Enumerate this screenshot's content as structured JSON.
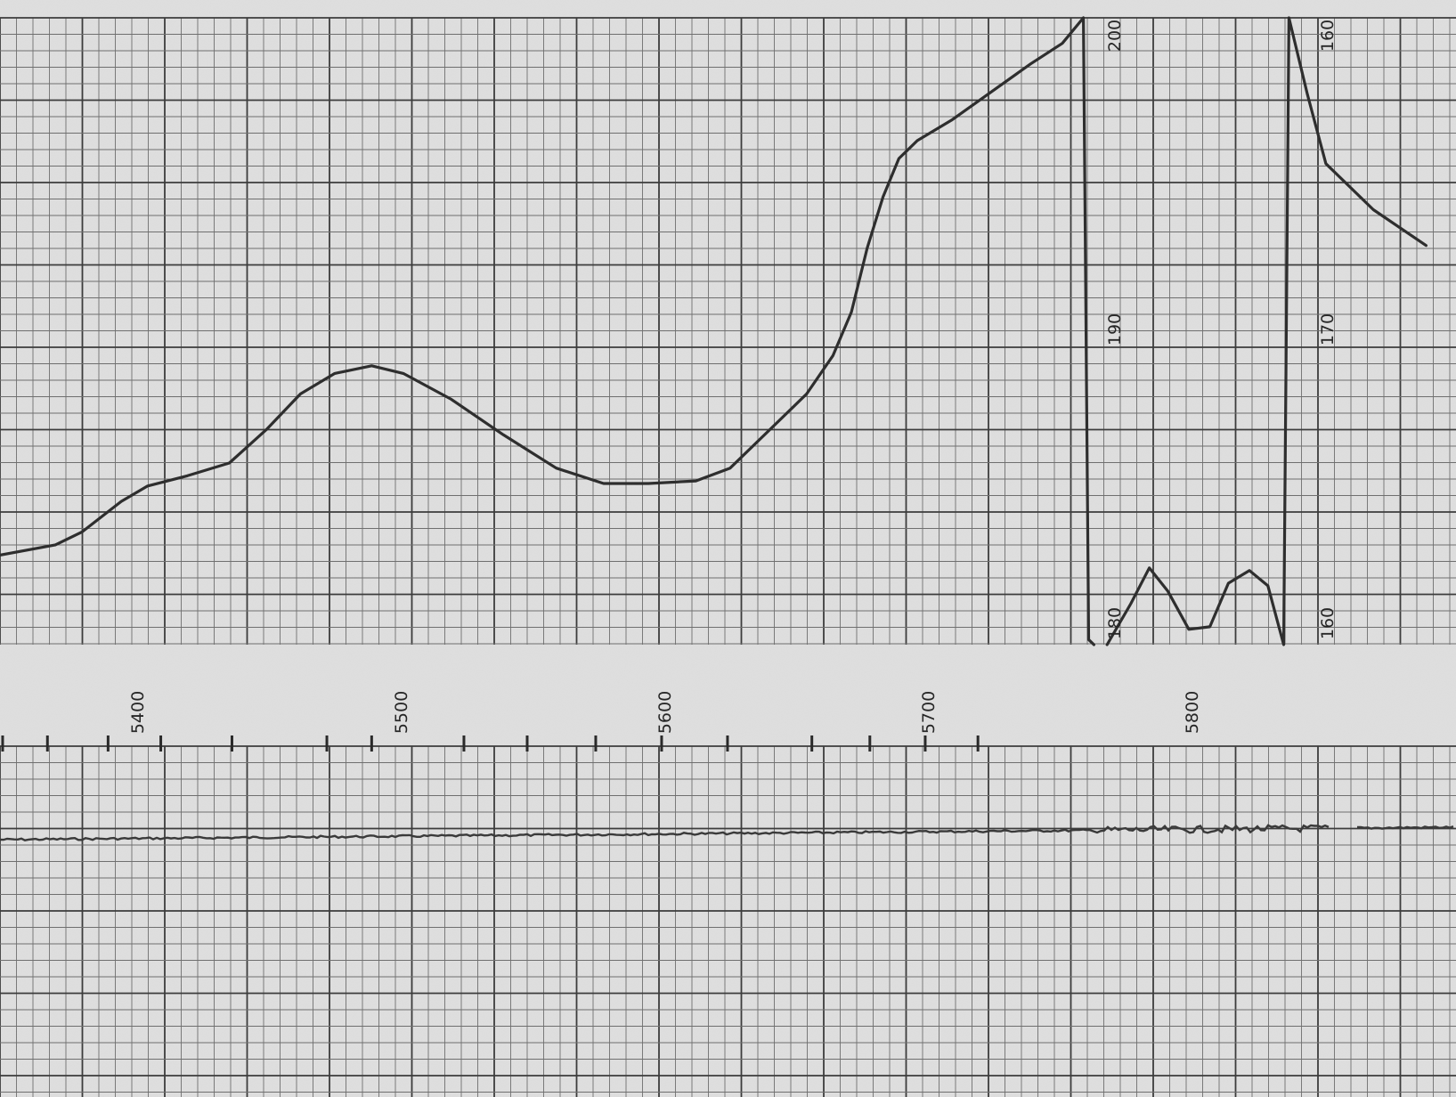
{
  "chart_data": [
    {
      "type": "line",
      "panel": "upper recorder trace",
      "title": "",
      "xlabel": "",
      "ylabel": "",
      "x_tick_labels": [
        "5400",
        "5500",
        "5600",
        "5700",
        "5800"
      ],
      "x_ticks": [
        5400,
        5500,
        5600,
        5700,
        5800
      ],
      "xlim": [
        5349,
        5890
      ],
      "grid": "mm chart-paper grid (bold lines every 5 small divisions)",
      "scale_segments": [
        {
          "labels": [
            "200",
            "190",
            "180"
          ],
          "y_top": 200,
          "y_bottom": 180,
          "x_range": [
            5349,
            5764
          ]
        },
        {
          "labels": [
            "160",
            "170",
            "160"
          ],
          "y_top": 160,
          "y_bottom": 170,
          "y_zero": 160,
          "x_range": [
            5769,
            5890
          ]
        }
      ],
      "series": [
        {
          "segment": 0,
          "points": [
            [
              5349,
              183.5
            ],
            [
              5370,
              183.9
            ],
            [
              5380,
              184.4
            ],
            [
              5395,
              185.6
            ],
            [
              5405,
              186.2
            ],
            [
              5420,
              186.6
            ],
            [
              5436,
              187.1
            ],
            [
              5450,
              188.4
            ],
            [
              5463,
              189.8
            ],
            [
              5476,
              190.6
            ],
            [
              5490,
              190.9
            ],
            [
              5502,
              190.6
            ],
            [
              5520,
              189.6
            ],
            [
              5540,
              188.2
            ],
            [
              5560,
              186.9
            ],
            [
              5578,
              186.3
            ],
            [
              5595,
              186.3
            ],
            [
              5613,
              186.4
            ],
            [
              5626,
              186.9
            ],
            [
              5640,
              188.3
            ],
            [
              5655,
              189.8
            ],
            [
              5665,
              191.3
            ],
            [
              5672,
              193.0
            ],
            [
              5678,
              195.5
            ],
            [
              5684,
              197.5
            ],
            [
              5690,
              199.0
            ],
            [
              5697,
              199.7
            ],
            [
              5710,
              200.5
            ],
            [
              5725,
              201.6
            ],
            [
              5740,
              202.7
            ],
            [
              5752,
              203.5
            ],
            [
              5760,
              204.5
            ],
            [
              5762,
              180.2
            ],
            [
              5764,
              180.0
            ]
          ]
        },
        {
          "segment": 1,
          "points": [
            [
              5769,
              180.0
            ],
            [
              5778,
              181.6
            ],
            [
              5785,
              183.0
            ],
            [
              5792,
              182.1
            ],
            [
              5800,
              180.6
            ],
            [
              5808,
              180.7
            ],
            [
              5815,
              182.4
            ],
            [
              5823,
              182.9
            ],
            [
              5830,
              182.3
            ],
            [
              5836,
              180.0
            ],
            [
              5838,
              204.5
            ],
            [
              5845,
              201.5
            ],
            [
              5852,
              198.8
            ],
            [
              5870,
              197.0
            ],
            [
              5890,
              195.6
            ]
          ]
        }
      ]
    },
    {
      "type": "line",
      "panel": "lower reference trace",
      "title": "",
      "xlabel": "",
      "ylabel": "",
      "x_ticks": [
        5350,
        5367,
        5390,
        5410,
        5437,
        5473,
        5490,
        5525,
        5549,
        5575,
        5600,
        5625,
        5657,
        5679,
        5700,
        5720
      ],
      "xlim": [
        5349,
        5890
      ],
      "note": "near-flat baseline with small spikes"
    }
  ]
}
